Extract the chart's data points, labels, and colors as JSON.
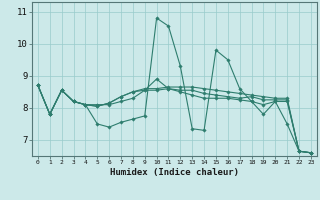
{
  "xlabel": "Humidex (Indice chaleur)",
  "background_color": "#cce9e9",
  "line_color": "#2e7d6e",
  "grid_color": "#99cccc",
  "xlim": [
    -0.5,
    23.5
  ],
  "ylim": [
    6.5,
    11.3
  ],
  "yticks": [
    7,
    8,
    9,
    10,
    11
  ],
  "xticks": [
    0,
    1,
    2,
    3,
    4,
    5,
    6,
    7,
    8,
    9,
    10,
    11,
    12,
    13,
    14,
    15,
    16,
    17,
    18,
    19,
    20,
    21,
    22,
    23
  ],
  "series": [
    [
      8.7,
      7.8,
      8.55,
      8.2,
      8.1,
      7.5,
      7.4,
      7.55,
      7.65,
      7.75,
      10.8,
      10.55,
      9.3,
      7.35,
      7.3,
      9.8,
      9.5,
      8.6,
      8.2,
      7.8,
      8.2,
      7.5,
      6.65,
      6.6
    ],
    [
      8.7,
      7.8,
      8.55,
      8.2,
      8.1,
      8.1,
      8.1,
      8.2,
      8.3,
      8.55,
      8.55,
      8.6,
      8.5,
      8.4,
      8.3,
      8.3,
      8.3,
      8.25,
      8.2,
      8.1,
      8.2,
      8.2,
      6.65,
      6.6
    ],
    [
      8.7,
      7.8,
      8.55,
      8.2,
      8.1,
      8.05,
      8.15,
      8.35,
      8.5,
      8.6,
      8.6,
      8.65,
      8.65,
      8.65,
      8.6,
      8.55,
      8.5,
      8.45,
      8.4,
      8.35,
      8.3,
      8.3,
      6.65,
      6.6
    ],
    [
      8.7,
      7.8,
      8.55,
      8.2,
      8.1,
      8.05,
      8.15,
      8.35,
      8.5,
      8.55,
      8.9,
      8.6,
      8.55,
      8.55,
      8.45,
      8.4,
      8.35,
      8.3,
      8.35,
      8.25,
      8.25,
      8.25,
      6.65,
      6.6
    ]
  ]
}
